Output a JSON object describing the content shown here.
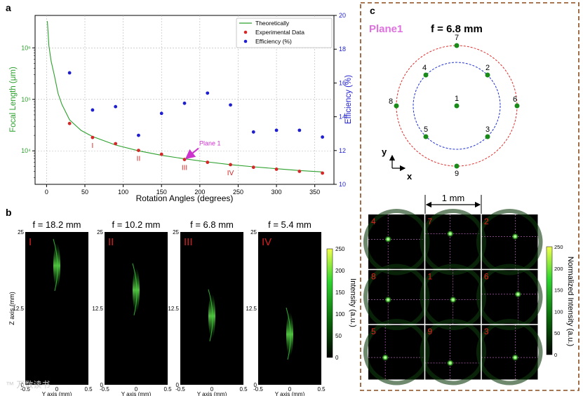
{
  "panel_labels": {
    "a": "a",
    "b": "b",
    "c": "c"
  },
  "chart_data": [
    {
      "type": "scatter",
      "panel": "a",
      "xlabel": "Rotation Angles (degrees)",
      "ylabel": "Focal Length (μm)",
      "y2label": "Efficiency (%)",
      "xlim": [
        -15,
        375
      ],
      "x_ticks": [
        "0",
        "50",
        "100",
        "150",
        "200",
        "250",
        "300",
        "350"
      ],
      "y_log": true,
      "y_ticks": [
        "10⁴",
        "10⁵",
        "10⁶"
      ],
      "ylim_log10": [
        3.35,
        6.63
      ],
      "y2lim": [
        10,
        20
      ],
      "y2_ticks": [
        "10",
        "12",
        "14",
        "16",
        "18",
        "20"
      ],
      "grid": true,
      "legend_position": "top-right",
      "legend": [
        "Theoretically",
        "Experimental Data",
        "Efficiency (%)"
      ],
      "colors": {
        "theory": "#2ca02c",
        "experimental": "#d62728",
        "efficiency": "#1f1fd0",
        "y2axis": "#1f1fd0",
        "ylabel": "#2ca02c",
        "annotation": "#cc33cc"
      },
      "series": [
        {
          "name": "Theoretically",
          "kind": "line",
          "x": [
            1,
            3,
            6,
            10,
            15,
            20,
            30,
            45,
            60,
            90,
            120,
            150,
            180,
            210,
            240,
            270,
            300,
            330,
            360
          ],
          "y": [
            3300000,
            1100000,
            550000,
            300000,
            130000,
            80000,
            40000,
            25000,
            19000,
            13000,
            10000,
            8200,
            7000,
            6100,
            5400,
            4900,
            4500,
            4150,
            3900
          ]
        },
        {
          "name": "Experimental Data",
          "kind": "scatter",
          "x": [
            30,
            60,
            90,
            120,
            150,
            180,
            210,
            240,
            270,
            300,
            330,
            360
          ],
          "y": [
            34000,
            18200,
            13800,
            10200,
            8600,
            6800,
            6000,
            5400,
            4800,
            4400,
            4000,
            3700
          ]
        },
        {
          "name": "Efficiency (%)",
          "kind": "scatter",
          "axis": "y2",
          "x": [
            30,
            60,
            90,
            120,
            150,
            180,
            210,
            240,
            270,
            300,
            330,
            360
          ],
          "y": [
            16.6,
            14.4,
            14.6,
            12.9,
            14.2,
            14.8,
            15.4,
            14.7,
            13.1,
            13.2,
            13.2,
            12.8
          ]
        }
      ],
      "annotations": [
        {
          "text": "I",
          "x": 60
        },
        {
          "text": "II",
          "x": 120
        },
        {
          "text": "III",
          "x": 180
        },
        {
          "text": "IV",
          "x": 240
        },
        {
          "text": "Plane 1",
          "x": 180
        }
      ]
    }
  ],
  "panel_b": {
    "plots": [
      {
        "title": "f = 18.2 mm",
        "roman": "I",
        "peak": 0.78
      },
      {
        "title": "f = 10.2 mm",
        "roman": "II",
        "peak": 0.62
      },
      {
        "title": "f = 6.8 mm",
        "roman": "III",
        "peak": 0.45
      },
      {
        "title": "f = 5.4 mm",
        "roman": "IV",
        "peak": 0.33
      }
    ],
    "zlabel": "Z axis (mm)",
    "ylabel": "Y axis (mm)",
    "z_ticks": [
      "25",
      "12.5",
      "0"
    ],
    "y_ticks": [
      "-0.5",
      "0",
      "0.5"
    ],
    "colorbar": {
      "label": "Intensity (a.u.)",
      "ticks": [
        "250",
        "200",
        "150",
        "100",
        "50",
        "0"
      ]
    }
  },
  "panel_c": {
    "plane_label": "Plane1",
    "focal": "f = 6.8 mm",
    "points": [
      "7",
      "4",
      "2",
      "8",
      "1",
      "6",
      "5",
      "3",
      "9"
    ],
    "axis_y": "y",
    "axis_x": "x",
    "scale": "1 mm",
    "grid": [
      {
        "label": "4",
        "spot": [
          0.35,
          0.45
        ]
      },
      {
        "label": "7",
        "spot": [
          0.45,
          0.35
        ]
      },
      {
        "label": "2",
        "spot": [
          0.6,
          0.4
        ]
      },
      {
        "label": "8",
        "spot": [
          0.35,
          0.55
        ]
      },
      {
        "label": "1",
        "spot": [
          0.5,
          0.55
        ]
      },
      {
        "label": "6",
        "spot": [
          0.65,
          0.45
        ]
      },
      {
        "label": "5",
        "spot": [
          0.3,
          0.6
        ]
      },
      {
        "label": "9",
        "spot": [
          0.45,
          0.7
        ]
      },
      {
        "label": "3",
        "spot": [
          0.6,
          0.6
        ]
      }
    ],
    "colorbar": {
      "label": "Normalized Intensity (a.u.)",
      "ticks": [
        "250",
        "200",
        "150",
        "100",
        "50",
        "0"
      ]
    }
  },
  "watermark": "™ 万数读书"
}
